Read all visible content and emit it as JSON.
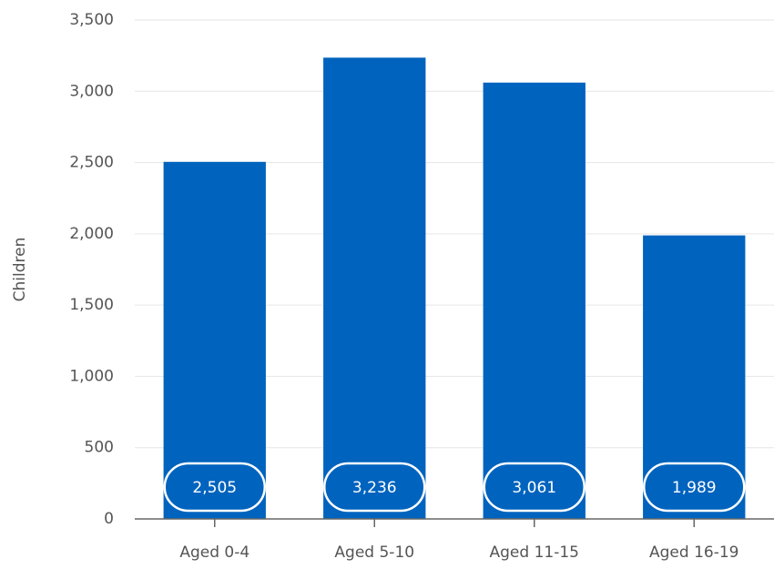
{
  "chart_data": {
    "type": "bar",
    "y_label": "Children",
    "categories": [
      "Aged 0-4",
      "Aged 5-10",
      "Aged 11-15",
      "Aged 16-19"
    ],
    "values": [
      2505,
      3236,
      3061,
      1989
    ],
    "value_labels": [
      "2,505",
      "3,236",
      "3,061",
      "1,989"
    ],
    "color": "#0063be",
    "ylim": [
      0,
      3500
    ],
    "yticks": [
      0,
      500,
      {
        "value": 1000,
        "label": "1,000"
      },
      {
        "value": 1500,
        "label": "1,500"
      },
      {
        "value": 2000,
        "label": "2,000"
      },
      {
        "value": 2500,
        "label": "2,500"
      },
      {
        "value": 3000,
        "label": "3,000"
      },
      {
        "value": 3500,
        "label": "3,500"
      }
    ],
    "grid": true
  }
}
